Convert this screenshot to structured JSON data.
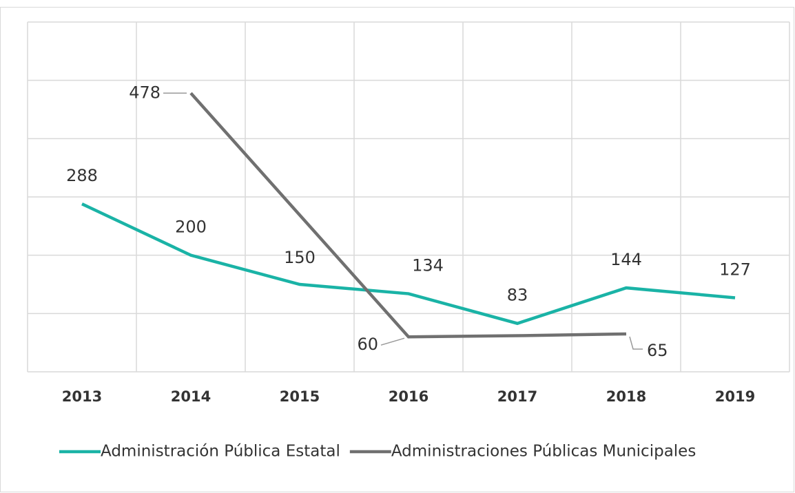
{
  "chart_data": {
    "type": "line",
    "categories": [
      "2013",
      "2014",
      "2015",
      "2016",
      "2017",
      "2018",
      "2019"
    ],
    "series": [
      {
        "name": "Administración Pública Estatal",
        "color": "#1ab3a6",
        "values": [
          288,
          200,
          150,
          134,
          83,
          144,
          127
        ],
        "value_labels": [
          "288",
          "200",
          "150",
          "134",
          "83",
          "144",
          "127"
        ]
      },
      {
        "name": "Administraciones Públicas Municipales",
        "color": "#707070",
        "values": [
          null,
          478,
          269,
          60,
          62,
          65,
          null
        ],
        "value_labels": [
          null,
          "478",
          null,
          "60",
          null,
          "65",
          null
        ]
      }
    ],
    "ylim": [
      0,
      600
    ],
    "yticks": [
      0,
      100,
      200,
      300,
      400,
      500,
      600
    ],
    "grid": true,
    "legend": "bottom"
  }
}
